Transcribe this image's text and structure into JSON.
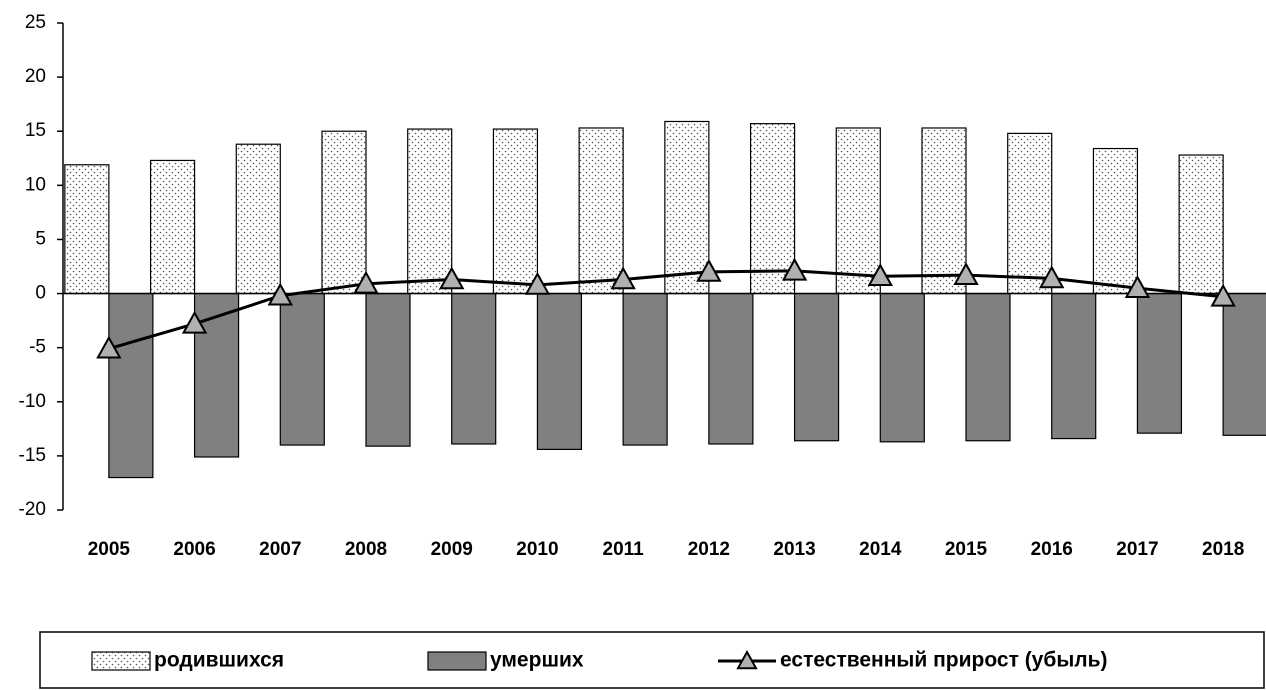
{
  "chart_data": {
    "type": "bar_line",
    "categories": [
      "2005",
      "2006",
      "2007",
      "2008",
      "2009",
      "2010",
      "2011",
      "2012",
      "2013",
      "2014",
      "2015",
      "2016",
      "2017",
      "2018"
    ],
    "series": [
      {
        "name": "родившихся",
        "type": "bar",
        "color": "#ffffff",
        "pattern": "dots",
        "values": [
          11.9,
          12.3,
          13.8,
          15.0,
          15.2,
          15.2,
          15.3,
          15.9,
          15.7,
          15.3,
          15.3,
          14.8,
          13.4,
          12.8
        ]
      },
      {
        "name": "умерших",
        "type": "bar",
        "color": "#808080",
        "values": [
          -17.0,
          -15.1,
          -14.0,
          -14.1,
          -13.9,
          -14.4,
          -14.0,
          -13.9,
          -13.6,
          -13.7,
          -13.6,
          -13.4,
          -12.9,
          -13.1
        ]
      },
      {
        "name": "естественный прирост (убыль)",
        "type": "line",
        "color": "#000000",
        "marker": "triangle",
        "values": [
          -5.1,
          -2.8,
          -0.2,
          0.9,
          1.3,
          0.8,
          1.3,
          2.0,
          2.1,
          1.6,
          1.7,
          1.4,
          0.5,
          -0.3
        ]
      }
    ],
    "ylim": [
      -20,
      25
    ],
    "yticks": [
      -20,
      -15,
      -10,
      -5,
      0,
      5,
      10,
      15,
      20,
      25
    ],
    "legend": "bottom"
  }
}
